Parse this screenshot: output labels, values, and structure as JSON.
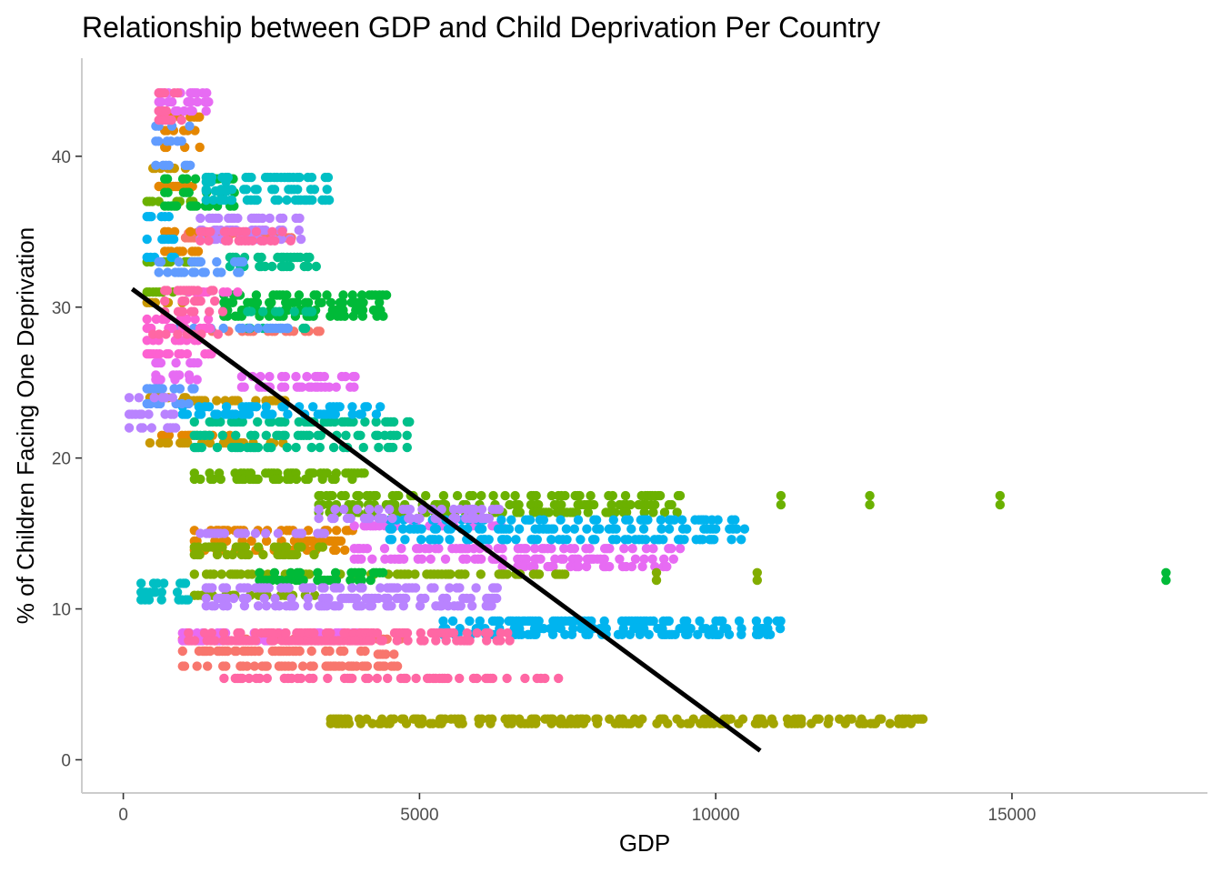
{
  "chart_data": {
    "type": "scatter",
    "title": "Relationship between GDP and Child Deprivation Per Country",
    "xlabel": "GDP",
    "ylabel": "% of Children Facing One Deprivation",
    "xlim": [
      -700,
      18300
    ],
    "ylim": [
      -2.2,
      46.5
    ],
    "x_ticks": [
      0,
      5000,
      10000,
      15000
    ],
    "y_ticks": [
      0,
      10,
      20,
      30,
      40
    ],
    "grid": false,
    "legend": "none",
    "trend_line": {
      "color": "#000000",
      "x": [
        150,
        10750
      ],
      "y": [
        31.2,
        0.6
      ]
    },
    "series": [
      {
        "color": "#F8766D",
        "segments": [
          [
            1050,
            2850,
            34.6
          ],
          [
            1100,
            2900,
            34.9
          ],
          [
            1500,
            3400,
            28.4
          ],
          [
            1000,
            4300,
            7.2
          ],
          [
            1000,
            4300,
            6.2
          ],
          [
            1000,
            4200,
            8.0
          ],
          [
            4300,
            4700,
            8.0
          ],
          [
            4300,
            4700,
            7.0
          ],
          [
            4300,
            4700,
            6.2
          ]
        ]
      },
      {
        "color": "#E58700",
        "segments": [
          [
            700,
            1300,
            40.6
          ],
          [
            700,
            1300,
            41.7
          ],
          [
            600,
            1300,
            38.0
          ],
          [
            700,
            1300,
            42.6
          ],
          [
            700,
            1300,
            33.7
          ],
          [
            700,
            1600,
            35.0
          ],
          [
            650,
            1800,
            21.5
          ],
          [
            1200,
            3900,
            15.2
          ],
          [
            1200,
            3900,
            14.5
          ],
          [
            1200,
            3900,
            13.9
          ]
        ]
      },
      {
        "color": "#E76BF3",
        "segments": [
          [
            600,
            1450,
            43.6
          ],
          [
            600,
            1450,
            44.2
          ],
          [
            600,
            1450,
            43.0
          ],
          [
            550,
            1300,
            26.3
          ],
          [
            550,
            1300,
            25.5
          ],
          [
            550,
            1300,
            25.2
          ],
          [
            2000,
            4000,
            25.4
          ],
          [
            2000,
            4000,
            24.7
          ],
          [
            3900,
            6400,
            15.5
          ],
          [
            3900,
            6400,
            14.0
          ],
          [
            3900,
            6400,
            13.3
          ],
          [
            6400,
            9400,
            14.0
          ],
          [
            6400,
            9400,
            13.3
          ],
          [
            6400,
            9400,
            12.8
          ],
          [
            1000,
            4100,
            8.4
          ],
          [
            1000,
            4100,
            7.9
          ]
        ]
      },
      {
        "color": "#C99800",
        "segments": [
          [
            500,
            1100,
            39.2
          ],
          [
            400,
            1000,
            30.3
          ],
          [
            450,
            1100,
            24.0
          ],
          [
            450,
            1000,
            21.0
          ],
          [
            1000,
            2800,
            23.8
          ],
          [
            1000,
            2800,
            21.0
          ]
        ]
      },
      {
        "color": "#A3A500",
        "segments": [
          [
            3500,
            13500,
            2.7
          ],
          [
            3500,
            13500,
            2.4
          ]
        ]
      },
      {
        "color": "#6BB100",
        "segments": [
          [
            400,
            1300,
            37.0
          ],
          [
            400,
            1300,
            33.0
          ],
          [
            400,
            1300,
            31.0
          ],
          [
            1200,
            4100,
            19.0
          ],
          [
            1200,
            4100,
            18.6
          ],
          [
            3300,
            9400,
            17.5
          ],
          [
            3300,
            9400,
            16.9
          ],
          [
            3300,
            9400,
            16.4
          ],
          [
            11100,
            11100,
            17.5
          ],
          [
            11100,
            11100,
            16.9
          ],
          [
            12600,
            12600,
            17.5
          ],
          [
            12600,
            12600,
            16.9
          ],
          [
            14800,
            14800,
            17.5
          ],
          [
            14800,
            14800,
            16.9
          ]
        ]
      },
      {
        "color": "#82AD00",
        "segments": [
          [
            1200,
            3400,
            13.6
          ],
          [
            1200,
            3400,
            14.1
          ],
          [
            1200,
            3400,
            12.3
          ],
          [
            1200,
            3400,
            10.9
          ],
          [
            3600,
            7500,
            12.3
          ],
          [
            9000,
            9000,
            12.4
          ],
          [
            9000,
            9000,
            11.9
          ],
          [
            10700,
            10700,
            12.4
          ],
          [
            10700,
            10700,
            11.9
          ]
        ]
      },
      {
        "color": "#00BA38",
        "segments": [
          [
            700,
            1900,
            38.5
          ],
          [
            700,
            1900,
            37.6
          ],
          [
            700,
            1900,
            36.7
          ],
          [
            1700,
            4500,
            30.8
          ],
          [
            1700,
            4500,
            30.3
          ],
          [
            1700,
            4500,
            29.8
          ],
          [
            1700,
            4500,
            29.4
          ],
          [
            2300,
            4400,
            12.4
          ],
          [
            2300,
            4400,
            11.9
          ],
          [
            17600,
            17600,
            12.4
          ],
          [
            17600,
            17600,
            11.9
          ]
        ]
      },
      {
        "color": "#00C08B",
        "segments": [
          [
            1200,
            4900,
            22.4
          ],
          [
            1200,
            4900,
            21.5
          ],
          [
            1200,
            4900,
            20.7
          ],
          [
            1800,
            3300,
            33.3
          ],
          [
            1800,
            3300,
            32.7
          ],
          [
            2100,
            3200,
            29.7
          ],
          [
            2100,
            3200,
            28.6
          ]
        ]
      },
      {
        "color": "#00BFC4",
        "segments": [
          [
            1400,
            1900,
            38.3
          ],
          [
            1400,
            1900,
            37.7
          ],
          [
            1400,
            1900,
            37.1
          ],
          [
            1400,
            3500,
            38.6
          ],
          [
            1400,
            3500,
            37.8
          ],
          [
            1400,
            3500,
            37.1
          ],
          [
            300,
            1100,
            11.7
          ],
          [
            300,
            1100,
            11.1
          ],
          [
            300,
            1100,
            10.6
          ]
        ]
      },
      {
        "color": "#00B4EF",
        "segments": [
          [
            400,
            900,
            36.0
          ],
          [
            400,
            900,
            34.5
          ],
          [
            400,
            900,
            33.3
          ],
          [
            1000,
            4400,
            23.4
          ],
          [
            1000,
            4400,
            22.9
          ],
          [
            4500,
            10500,
            15.9
          ],
          [
            4500,
            10500,
            15.3
          ],
          [
            4500,
            10500,
            14.6
          ],
          [
            5400,
            11100,
            9.2
          ],
          [
            5400,
            11100,
            8.7
          ],
          [
            5400,
            11100,
            8.3
          ]
        ]
      },
      {
        "color": "#619CFF",
        "segments": [
          [
            550,
            1150,
            42.0
          ],
          [
            550,
            1150,
            41.0
          ],
          [
            550,
            1150,
            39.4
          ],
          [
            600,
            2200,
            33.0
          ],
          [
            600,
            2200,
            32.3
          ],
          [
            400,
            1200,
            24.6
          ],
          [
            400,
            1200,
            23.6
          ],
          [
            800,
            2900,
            28.6
          ]
        ]
      },
      {
        "color": "#B983FF",
        "segments": [
          [
            1300,
            3000,
            35.9
          ],
          [
            1300,
            3000,
            35.1
          ],
          [
            1300,
            3000,
            34.5
          ],
          [
            100,
            900,
            24.0
          ],
          [
            100,
            900,
            22.9
          ],
          [
            100,
            900,
            22.0
          ],
          [
            1300,
            3400,
            15.0
          ],
          [
            1400,
            6400,
            11.4
          ],
          [
            1400,
            6400,
            10.7
          ],
          [
            1400,
            6400,
            10.2
          ],
          [
            3300,
            6400,
            16.6
          ],
          [
            3300,
            6400,
            16.0
          ]
        ]
      },
      {
        "color": "#FD61D1",
        "segments": [
          [
            400,
            1500,
            29.2
          ],
          [
            400,
            1500,
            28.6
          ],
          [
            400,
            1500,
            27.8
          ],
          [
            400,
            1500,
            26.9
          ],
          [
            1100,
            2000,
            31.0
          ]
        ]
      },
      {
        "color": "#FF67A4",
        "segments": [
          [
            600,
            1000,
            44.2
          ],
          [
            600,
            1000,
            43.0
          ],
          [
            600,
            1000,
            42.4
          ],
          [
            1300,
            2900,
            35.0
          ],
          [
            1300,
            2900,
            34.4
          ],
          [
            700,
            1700,
            31.1
          ],
          [
            700,
            1700,
            30.4
          ],
          [
            700,
            1700,
            29.7
          ],
          [
            500,
            1600,
            28.2
          ],
          [
            1100,
            4200,
            8.4
          ],
          [
            1100,
            4200,
            7.9
          ],
          [
            2500,
            6600,
            8.4
          ],
          [
            2500,
            6600,
            7.9
          ],
          [
            1700,
            7500,
            5.4
          ]
        ]
      }
    ]
  }
}
